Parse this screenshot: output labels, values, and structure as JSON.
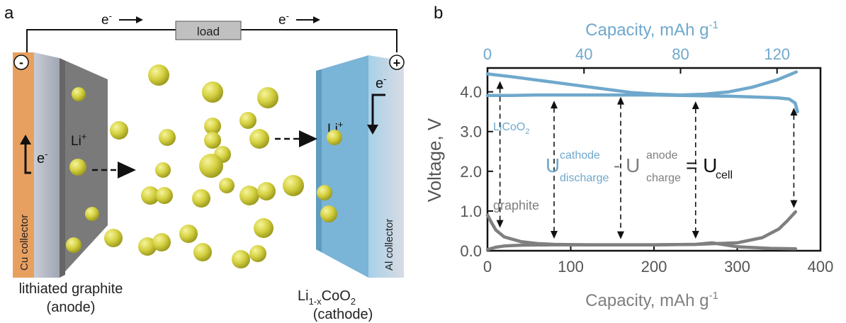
{
  "panel_a": {
    "label": "a",
    "load_label": "load",
    "electron_left": "e",
    "electron_right": "e",
    "electron_sup": "-",
    "minus_sign": "-",
    "plus_sign": "+",
    "cu_collector": "Cu  collector",
    "al_collector": "Al collector",
    "li_left": "Li",
    "li_right": "Li",
    "li_sup": "+",
    "e_anode": "e",
    "e_cathode": "e",
    "anode_caption_1": "lithiated graphite",
    "anode_caption_2": "(anode)",
    "cathode_formula_li": "Li",
    "cathode_formula_sub": "1-x",
    "cathode_formula_coo": "CoO",
    "cathode_formula_sub2": "2",
    "cathode_caption_2": "(cathode)",
    "colors": {
      "cu": "#E8A060",
      "anode": "#7A7A7A",
      "cathode": "#7AB4D6",
      "al": "#B8C0CC",
      "particle": "#D4D040"
    }
  },
  "panel_b": {
    "label": "b",
    "eq_U": "U",
    "eq_cathode_sup": "cathode",
    "eq_discharge_sub": "discharge",
    "eq_minus": "- U",
    "eq_anode_sup": "anode",
    "eq_charge_sub": "charge",
    "eq_equals": "= U",
    "eq_cell_sub": "cell",
    "licoo2_text": "LiCoO",
    "licoo2_sub": "2",
    "graphite_text": "graphite"
  },
  "chart_data": {
    "type": "line",
    "ylabel": "Voltage, V",
    "xlabel_bottom": "Capacity, mAh g",
    "xlabel_top": "Capacity, mAh g",
    "xlabel_exponent": "-1",
    "ylim": [
      0,
      4.6
    ],
    "xlim_bottom": [
      0,
      400
    ],
    "xlim_top": [
      0,
      138
    ],
    "yticks": [
      "0.0",
      "1.0",
      "2.0",
      "3.0",
      "4.0"
    ],
    "xticks_bottom": [
      "0",
      "100",
      "200",
      "300",
      "400"
    ],
    "xticks_top": [
      "0",
      "40",
      "80",
      "120"
    ],
    "series": [
      {
        "axis": "top",
        "color": "#6FA8CC",
        "x": [
          0,
          10,
          20,
          30,
          40,
          50,
          60,
          70,
          80,
          90,
          100,
          110,
          120,
          128
        ],
        "y": [
          4.45,
          4.38,
          4.3,
          4.22,
          4.14,
          4.06,
          3.98,
          3.94,
          3.92,
          3.94,
          4.0,
          4.12,
          4.3,
          4.5
        ]
      },
      {
        "axis": "top",
        "color": "#6FA8CC",
        "x": [
          0,
          10,
          20,
          30,
          40,
          50,
          60,
          70,
          80,
          90,
          100,
          110,
          120,
          125,
          127.5,
          128.5
        ],
        "y": [
          3.91,
          3.91,
          3.92,
          3.92,
          3.92,
          3.92,
          3.92,
          3.92,
          3.91,
          3.9,
          3.89,
          3.87,
          3.85,
          3.82,
          3.72,
          3.5
        ]
      },
      {
        "axis": "bottom",
        "color": "#7F7F7F",
        "x": [
          0,
          5,
          10,
          20,
          40,
          60,
          80,
          120,
          160,
          200,
          250,
          300,
          330,
          350,
          360,
          370
        ],
        "y": [
          0.9,
          0.7,
          0.52,
          0.35,
          0.23,
          0.18,
          0.16,
          0.15,
          0.15,
          0.15,
          0.16,
          0.2,
          0.33,
          0.55,
          0.75,
          0.98
        ]
      },
      {
        "axis": "bottom",
        "color": "#7F7F7F",
        "x": [
          0,
          10,
          20,
          40,
          80,
          150,
          200,
          250,
          270,
          300,
          340,
          370
        ],
        "y": [
          0.03,
          0.09,
          0.12,
          0.14,
          0.15,
          0.15,
          0.15,
          0.16,
          0.2,
          0.1,
          0.06,
          0.05
        ]
      }
    ],
    "arrows_x_bottom": [
      15,
      80,
      160,
      250,
      368
    ]
  }
}
